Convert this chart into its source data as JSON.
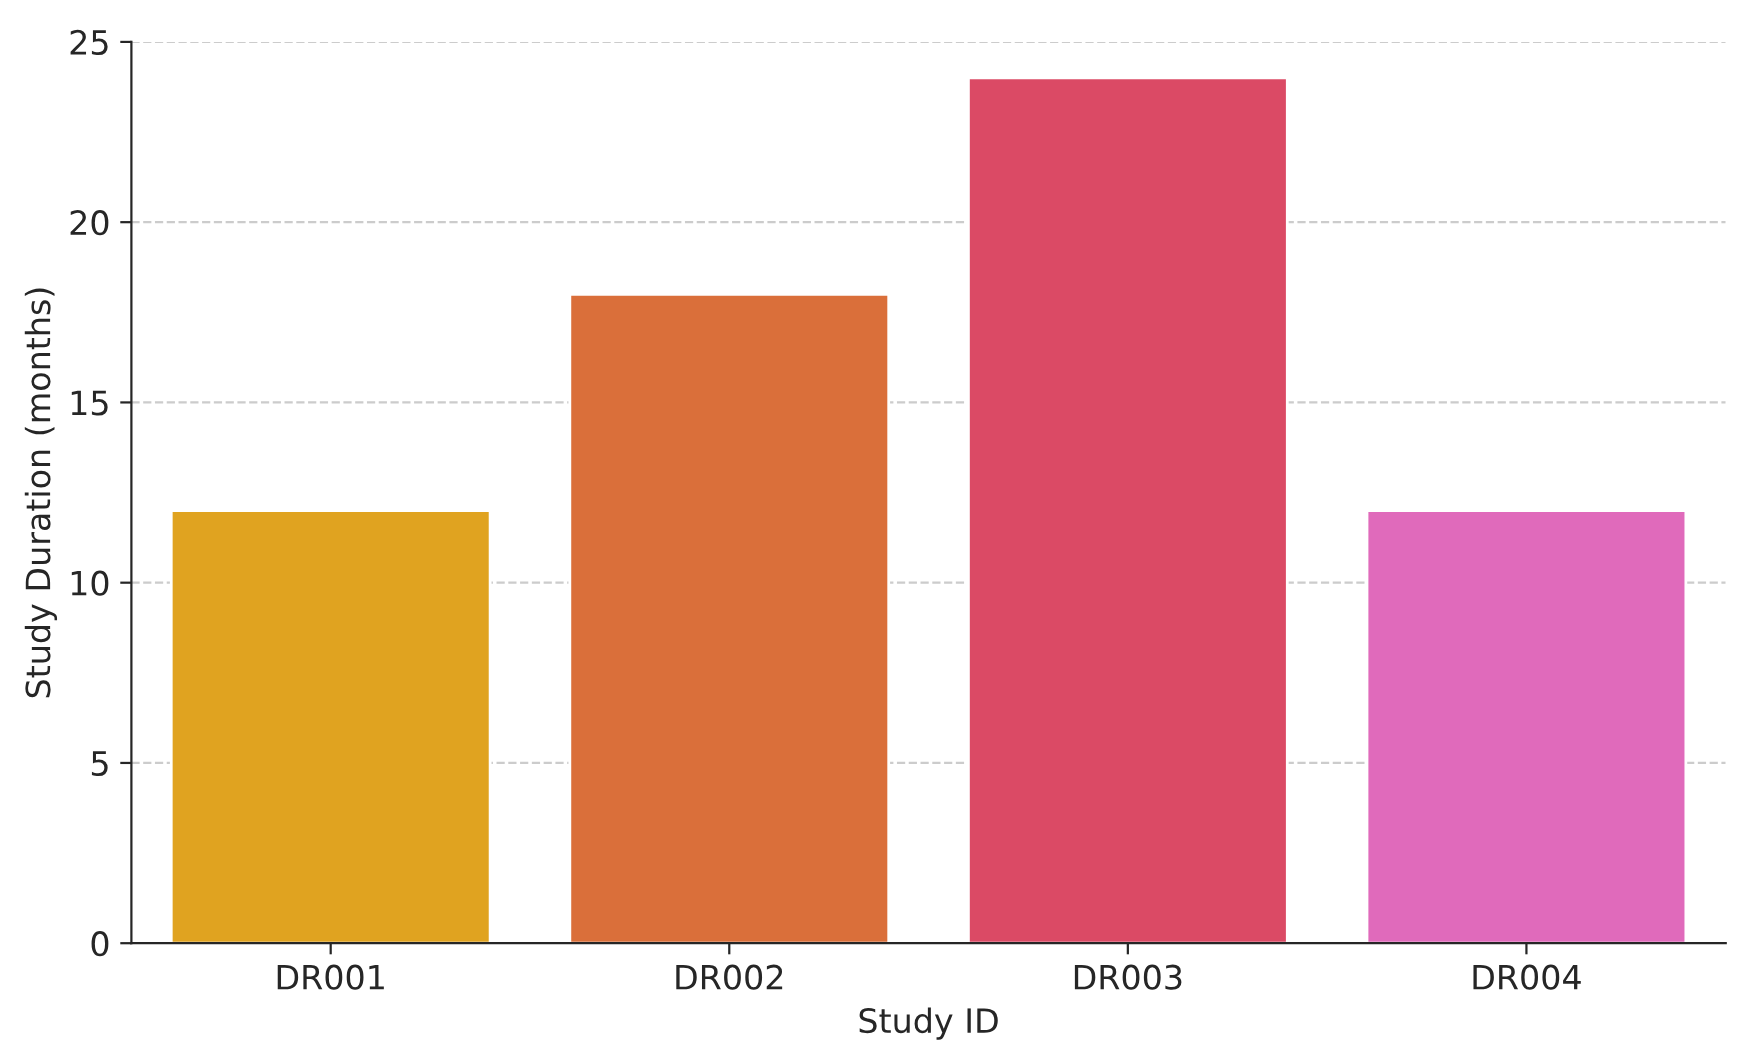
{
  "chart_data": {
    "type": "bar",
    "xlabel": "Study ID",
    "ylabel": "Study Duration (months)",
    "categories": [
      "DR001",
      "DR002",
      "DR003",
      "DR004"
    ],
    "values": [
      12,
      18,
      24,
      12
    ],
    "colors": [
      "#e0a320",
      "#da6f3a",
      "#db4a65",
      "#e06abb"
    ],
    "ylim": [
      0,
      25
    ],
    "yticks": [
      0,
      5,
      10,
      15,
      20,
      25
    ],
    "grid": "y"
  }
}
